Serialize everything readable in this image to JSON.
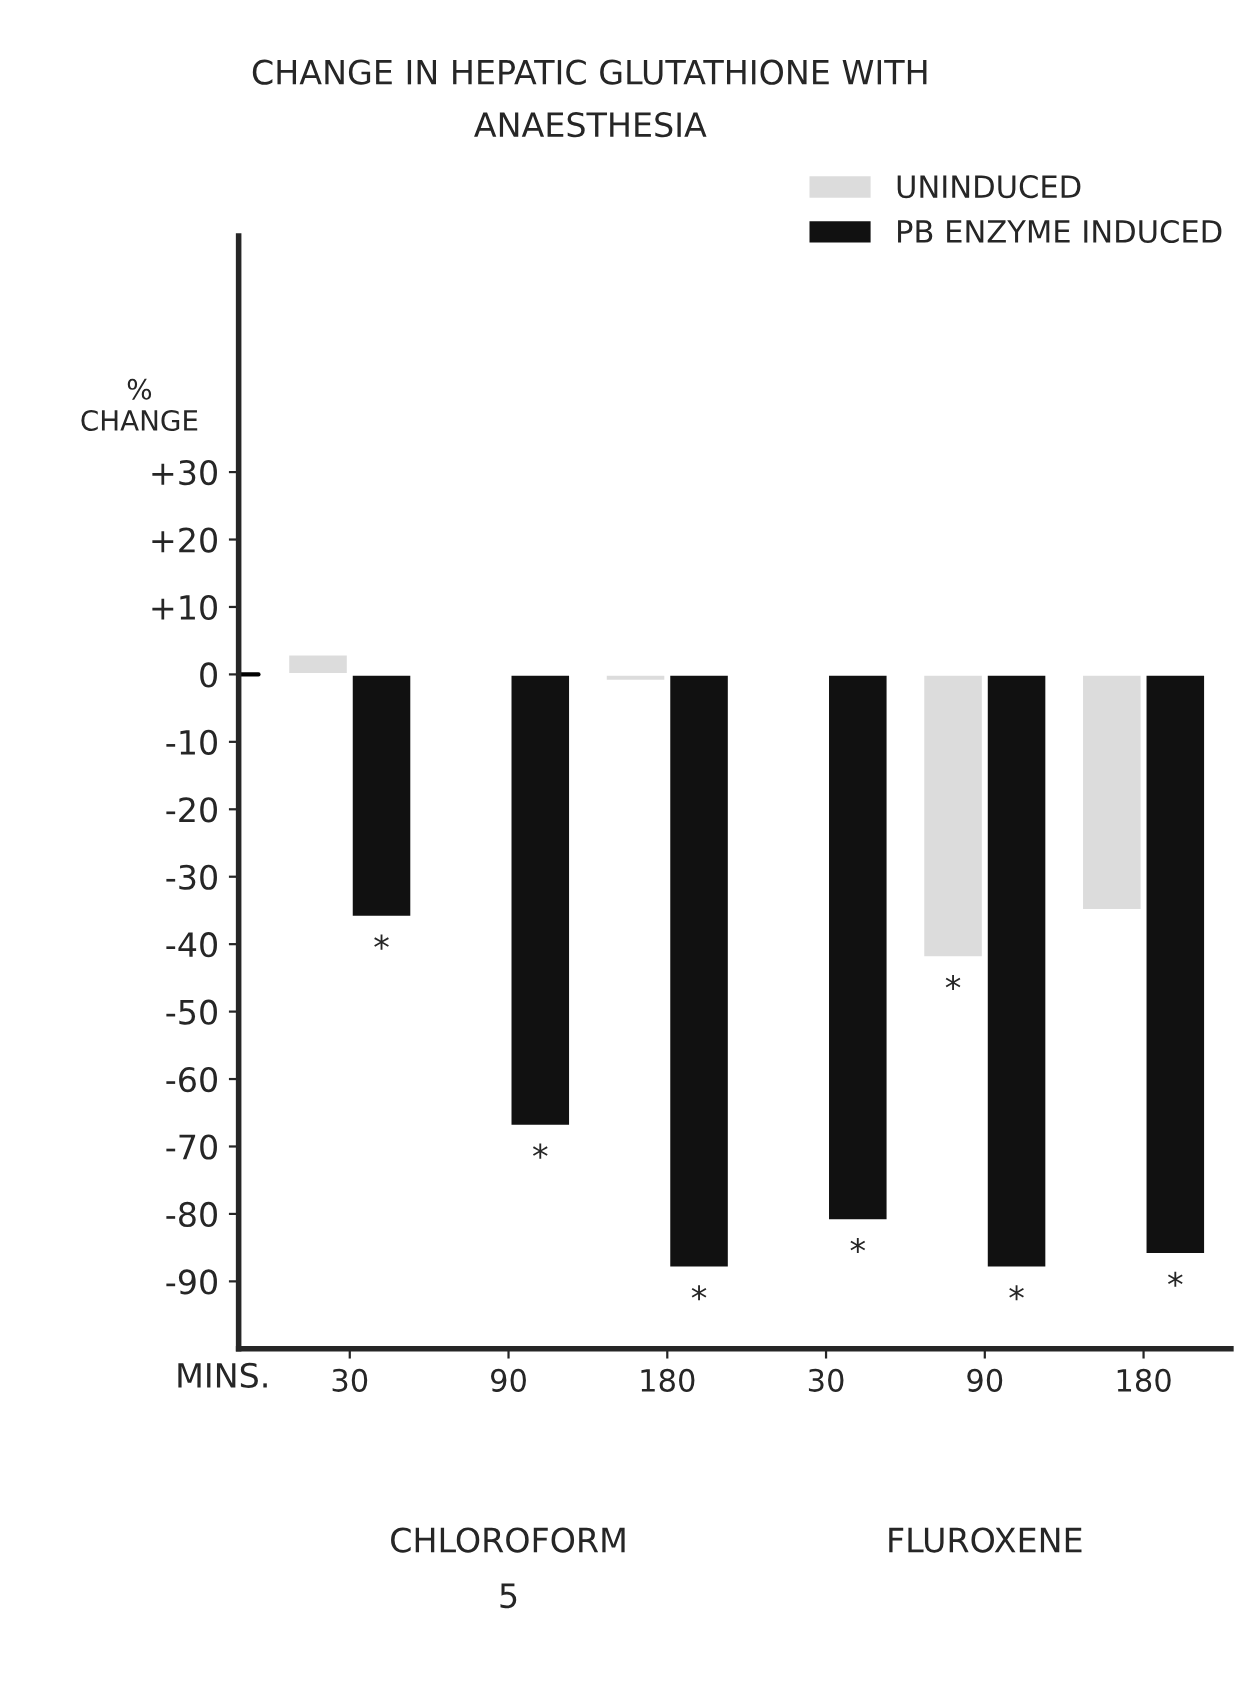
{
  "chart_data": {
    "type": "bar",
    "title": "CHANGE IN HEPATIC GLUTATHIONE WITH\nANAESTHESIA",
    "ylabel": "%\nCHANGE",
    "categories": [
      "30",
      "90",
      "180",
      "30",
      "90",
      "180"
    ],
    "series": [
      {
        "name": "UNINDUCED",
        "color": "#dcdcdc",
        "values": [
          3,
          null,
          -1,
          null,
          -42,
          -35
        ],
        "value_labels": [
          null,
          null,
          null,
          null,
          "*",
          null
        ]
      },
      {
        "name": "PB ENZYME INDUCED",
        "color": "#111111",
        "values": [
          -36,
          -67,
          -88,
          -81,
          -88,
          -86
        ],
        "value_labels": [
          "*",
          "*",
          "*",
          "*",
          "*",
          "*"
        ]
      }
    ],
    "ylim": [
      -100,
      65
    ],
    "yticks": [
      {
        "value": 30,
        "label": "+30"
      },
      {
        "value": 20,
        "label": "+20"
      },
      {
        "value": 10,
        "label": "+10"
      },
      0,
      {
        "value": -10,
        "label": "-10"
      },
      {
        "value": -20,
        "label": "-20"
      },
      {
        "value": -30,
        "label": "-30"
      },
      {
        "value": -40,
        "label": "-40"
      },
      {
        "value": -50,
        "label": "-50"
      },
      {
        "value": -60,
        "label": "-60"
      },
      {
        "value": -70,
        "label": "-70"
      },
      {
        "value": -80,
        "label": "-80"
      },
      {
        "value": -90,
        "label": "-90"
      }
    ],
    "annotations": [
      "MINS.",
      "CHLOROFORM",
      "FLUROXENE",
      "5"
    ],
    "grid": false,
    "legend": "top right"
  }
}
